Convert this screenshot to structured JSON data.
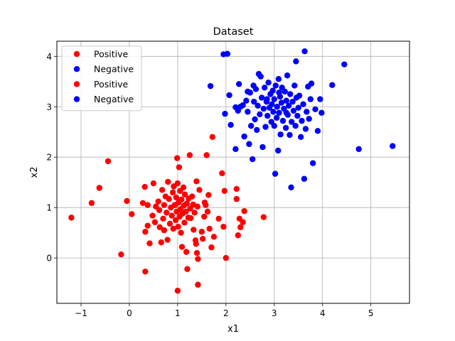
{
  "chart_data": {
    "type": "scatter",
    "title": "Dataset",
    "xlabel": "x1",
    "ylabel": "x2",
    "xlim": [
      -1.5,
      5.8
    ],
    "ylim": [
      -0.9,
      4.3
    ],
    "xticks": [
      -1,
      0,
      1,
      2,
      3,
      4,
      5
    ],
    "yticks": [
      0,
      1,
      2,
      3,
      4
    ],
    "grid": true,
    "legend_position": "top-left",
    "legend": [
      {
        "label": "Positive",
        "color": "#ff0000"
      },
      {
        "label": "Negative",
        "color": "#0000ff"
      },
      {
        "label": "Positive",
        "color": "#ff0000"
      },
      {
        "label": "Negative",
        "color": "#0000ff"
      }
    ],
    "series": [
      {
        "name": "Positive",
        "color": "#ff0000",
        "points": [
          [
            -1.2,
            0.8
          ],
          [
            -0.78,
            1.09
          ],
          [
            -0.62,
            1.39
          ],
          [
            -0.44,
            1.92
          ],
          [
            -0.17,
            0.07
          ],
          [
            -0.05,
            1.13
          ],
          [
            0.05,
            0.87
          ],
          [
            0.32,
            1.41
          ],
          [
            0.33,
            0.52
          ],
          [
            0.33,
            -0.27
          ],
          [
            0.28,
            1.09
          ],
          [
            0.38,
            1.05
          ],
          [
            0.38,
            0.64
          ],
          [
            0.42,
            0.29
          ],
          [
            0.48,
            0.84
          ],
          [
            0.5,
            1.48
          ],
          [
            0.53,
            0.71
          ],
          [
            0.55,
            1.02
          ],
          [
            0.6,
            1.12
          ],
          [
            0.62,
            0.95
          ],
          [
            0.63,
            0.61
          ],
          [
            0.66,
            0.31
          ],
          [
            0.68,
            1.35
          ],
          [
            0.7,
            0.78
          ],
          [
            0.72,
            1.05
          ],
          [
            0.72,
            0.55
          ],
          [
            0.75,
            1.22
          ],
          [
            0.77,
            0.9
          ],
          [
            0.79,
            0.36
          ],
          [
            0.8,
            1.51
          ],
          [
            0.82,
            1.17
          ],
          [
            0.84,
            0.68
          ],
          [
            0.86,
            1.0
          ],
          [
            0.88,
            0.84
          ],
          [
            0.9,
            1.3
          ],
          [
            0.91,
            0.58
          ],
          [
            0.92,
            1.42
          ],
          [
            0.94,
            1.05
          ],
          [
            0.96,
            0.75
          ],
          [
            0.97,
            1.2
          ],
          [
            0.99,
            1.98
          ],
          [
            0.98,
            0.92
          ],
          [
            1.0,
            1.48
          ],
          [
            1.01,
            0.62
          ],
          [
            1.02,
            1.1
          ],
          [
            1.03,
            1.8
          ],
          [
            1.04,
            0.82
          ],
          [
            1.05,
            1.33
          ],
          [
            1.06,
            0.97
          ],
          [
            1.07,
            0.5
          ],
          [
            1.08,
            1.16
          ],
          [
            1.09,
            0.22
          ],
          [
            1.1,
            0.88
          ],
          [
            1.12,
            1.4
          ],
          [
            1.13,
            1.04
          ],
          [
            1.14,
            0.7
          ],
          [
            1.15,
            1.26
          ],
          [
            1.17,
            0.92
          ],
          [
            1.18,
            0.12
          ],
          [
            1.19,
            1.08
          ],
          [
            1.2,
            -0.22
          ],
          [
            1.22,
            0.8
          ],
          [
            1.23,
            1.18
          ],
          [
            1.25,
            2.04
          ],
          [
            1.26,
            0.98
          ],
          [
            1.27,
            0.79
          ],
          [
            1.3,
            1.22
          ],
          [
            1.32,
            1.06
          ],
          [
            1.33,
            0.56
          ],
          [
            1.35,
            0.9
          ],
          [
            1.37,
            0.35
          ],
          [
            1.38,
            0.28
          ],
          [
            1.39,
            1.52
          ],
          [
            1.4,
            0.1
          ],
          [
            1.41,
            1.02
          ],
          [
            1.42,
            -0.02
          ],
          [
            1.45,
            1.35
          ],
          [
            1.5,
            0.52
          ],
          [
            1.52,
            0.38
          ],
          [
            1.55,
            0.82
          ],
          [
            1.56,
            1.1
          ],
          [
            1.58,
            1.05
          ],
          [
            1.6,
            2.04
          ],
          [
            1.62,
            0.92
          ],
          [
            1.64,
            1.25
          ],
          [
            1.66,
            0.58
          ],
          [
            1.7,
            0.21
          ],
          [
            1.72,
            2.4
          ],
          [
            1.75,
            0.42
          ],
          [
            1.85,
            0.78
          ],
          [
            1.92,
            1.68
          ],
          [
            1.95,
            0.62
          ],
          [
            1.97,
            1.33
          ],
          [
            2.0,
            0.0
          ],
          [
            2.22,
            1.37
          ],
          [
            2.22,
            1.17
          ],
          [
            2.25,
            0.45
          ],
          [
            2.28,
            0.78
          ],
          [
            2.3,
            0.61
          ],
          [
            2.35,
            0.71
          ],
          [
            2.38,
            0.93
          ],
          [
            2.78,
            0.81
          ],
          [
            1.0,
            -0.65
          ],
          [
            1.42,
            -0.53
          ],
          [
            0.95,
            1.05
          ]
        ]
      },
      {
        "name": "Negative",
        "color": "#0000ff",
        "points": [
          [
            1.68,
            3.41
          ],
          [
            1.95,
            4.04
          ],
          [
            2.03,
            4.05
          ],
          [
            1.98,
            2.86
          ],
          [
            2.07,
            3.23
          ],
          [
            2.1,
            2.64
          ],
          [
            2.2,
            2.16
          ],
          [
            2.2,
            2.99
          ],
          [
            2.25,
            2.92
          ],
          [
            2.27,
            3.45
          ],
          [
            2.35,
            3.03
          ],
          [
            2.38,
            2.41
          ],
          [
            2.42,
            3.12
          ],
          [
            2.45,
            2.9
          ],
          [
            2.48,
            2.26
          ],
          [
            2.5,
            3.28
          ],
          [
            2.52,
            2.62
          ],
          [
            2.55,
            1.96
          ],
          [
            2.57,
            3.42
          ],
          [
            2.58,
            3.1
          ],
          [
            2.6,
            2.75
          ],
          [
            2.62,
            3.35
          ],
          [
            2.64,
            2.54
          ],
          [
            2.66,
            3.02
          ],
          [
            2.68,
            3.65
          ],
          [
            2.7,
            2.85
          ],
          [
            2.72,
            3.6
          ],
          [
            2.74,
            3.18
          ],
          [
            2.76,
            2.2
          ],
          [
            2.78,
            2.96
          ],
          [
            2.8,
            3.38
          ],
          [
            2.82,
            2.6
          ],
          [
            2.84,
            3.1
          ],
          [
            2.86,
            2.82
          ],
          [
            2.88,
            3.48
          ],
          [
            2.9,
            2.98
          ],
          [
            2.92,
            3.25
          ],
          [
            2.94,
            2.7
          ],
          [
            2.95,
            3.05
          ],
          [
            2.97,
            3.32
          ],
          [
            2.98,
            2.9
          ],
          [
            3.0,
            3.15
          ],
          [
            3.02,
            1.67
          ],
          [
            3.03,
            3.42
          ],
          [
            3.05,
            2.78
          ],
          [
            3.06,
            3.0
          ],
          [
            3.08,
            2.13
          ],
          [
            3.09,
            3.55
          ],
          [
            3.1,
            2.88
          ],
          [
            3.12,
            3.2
          ],
          [
            3.13,
            2.45
          ],
          [
            3.15,
            3.08
          ],
          [
            3.16,
            3.38
          ],
          [
            3.18,
            2.72
          ],
          [
            3.2,
            2.96
          ],
          [
            3.22,
            3.3
          ],
          [
            3.24,
            2.58
          ],
          [
            3.25,
            3.12
          ],
          [
            3.27,
            3.62
          ],
          [
            3.28,
            2.84
          ],
          [
            3.3,
            3.02
          ],
          [
            3.32,
            2.44
          ],
          [
            3.33,
            3.25
          ],
          [
            3.35,
            1.4
          ],
          [
            3.36,
            2.7
          ],
          [
            3.38,
            3.1
          ],
          [
            3.4,
            2.92
          ],
          [
            3.42,
            3.42
          ],
          [
            3.44,
            2.62
          ],
          [
            3.46,
            3.18
          ],
          [
            3.48,
            2.82
          ],
          [
            3.5,
            2.98
          ],
          [
            3.52,
            3.22
          ],
          [
            3.55,
            2.4
          ],
          [
            3.57,
            2.72
          ],
          [
            3.6,
            3.05
          ],
          [
            3.62,
            1.57
          ],
          [
            3.63,
            4.1
          ],
          [
            3.65,
            2.56
          ],
          [
            3.67,
            2.9
          ],
          [
            3.7,
            3.4
          ],
          [
            3.72,
            2.76
          ],
          [
            3.75,
            3.15
          ],
          [
            3.77,
            3.46
          ],
          [
            3.8,
            1.88
          ],
          [
            3.85,
            2.95
          ],
          [
            3.9,
            2.52
          ],
          [
            3.95,
            3.15
          ],
          [
            3.98,
            2.88
          ],
          [
            2.3,
            3.0
          ],
          [
            2.45,
            3.3
          ],
          [
            3.45,
            3.9
          ],
          [
            4.2,
            3.43
          ],
          [
            4.45,
            3.84
          ],
          [
            4.75,
            2.16
          ],
          [
            5.45,
            2.22
          ],
          [
            3.0,
            2.62
          ],
          [
            3.25,
            2.88
          ],
          [
            2.85,
            3.15
          ],
          [
            3.1,
            3.28
          ]
        ]
      }
    ]
  }
}
